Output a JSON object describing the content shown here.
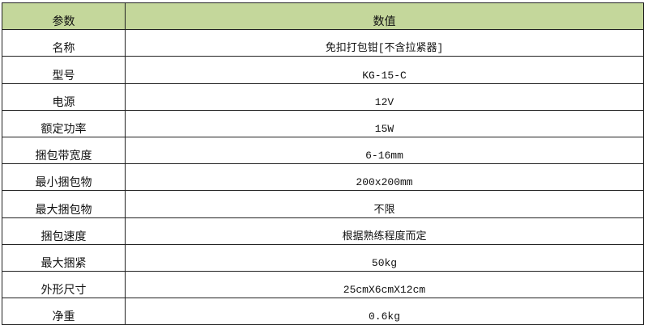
{
  "colors": {
    "header_bg": "#C4D79B",
    "border": "#222222"
  },
  "headers": [
    "参数",
    "数值"
  ],
  "rows": [
    {
      "param": "名称",
      "value": "免扣打包钳[不含拉紧器]"
    },
    {
      "param": "型号",
      "value": "KG-15-C"
    },
    {
      "param": "电源",
      "value": "12V"
    },
    {
      "param": "额定功率",
      "value": "15W"
    },
    {
      "param": "捆包带宽度",
      "value": "6-16mm"
    },
    {
      "param": "最小捆包物",
      "value": "200x200mm"
    },
    {
      "param": "最大捆包物",
      "value": "不限"
    },
    {
      "param": "捆包速度",
      "value": "根据熟练程度而定"
    },
    {
      "param": "最大捆紧",
      "value": "50kg"
    },
    {
      "param": "外形尺寸",
      "value": "25cmX6cmX12cm"
    },
    {
      "param": "净重",
      "value": "0.6kg"
    }
  ]
}
